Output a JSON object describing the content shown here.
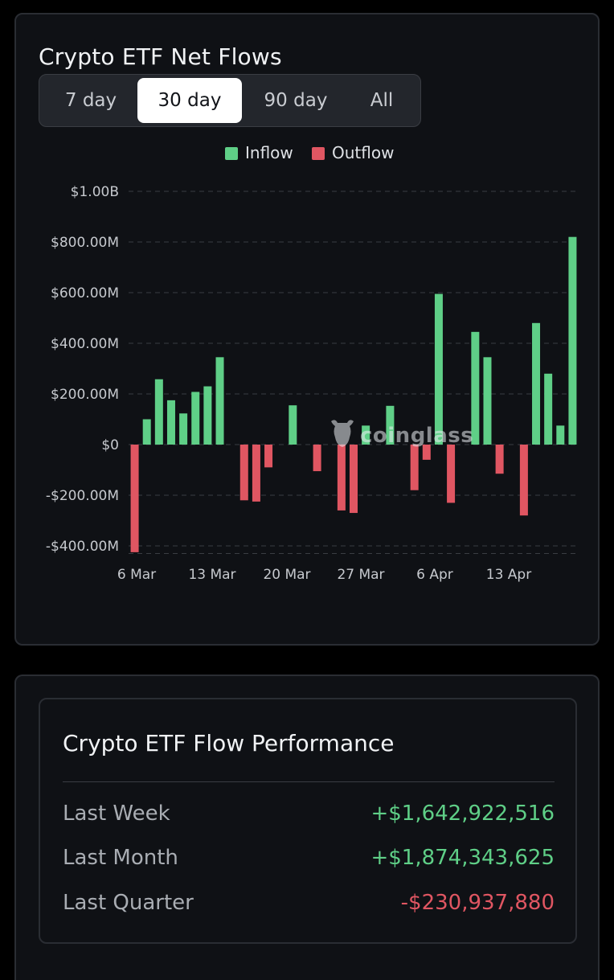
{
  "chart_card": {
    "title": "Crypto ETF Net Flows",
    "tabs": [
      {
        "label": "7 day",
        "active": false
      },
      {
        "label": "30 day",
        "active": true
      },
      {
        "label": "90 day",
        "active": false
      },
      {
        "label": "All",
        "active": false
      }
    ],
    "legend": [
      {
        "label": "Inflow",
        "color": "#5fcf87"
      },
      {
        "label": "Outflow",
        "color": "#e05662"
      }
    ],
    "watermark": "coinglass"
  },
  "chart_data": {
    "type": "bar",
    "yticks": [
      "$1.00B",
      "$800.00M",
      "$600.00M",
      "$400.00M",
      "$200.00M",
      "$0",
      "-$200.00M",
      "-$400.00M"
    ],
    "ytick_values": [
      1000,
      800,
      600,
      400,
      200,
      0,
      -200,
      -400
    ],
    "ylim": [
      -430,
      1000
    ],
    "y_unit": "USD millions",
    "xticks": [
      "6 Mar",
      "13 Mar",
      "20 Mar",
      "27 Mar",
      "6 Apr",
      "13 Apr"
    ],
    "categories": [
      "2025-03-06",
      "2025-03-07",
      "2025-03-08",
      "2025-03-09",
      "2025-03-10",
      "2025-03-11",
      "2025-03-12",
      "2025-03-13",
      "2025-03-14",
      "2025-03-15",
      "2025-03-16",
      "2025-03-17",
      "2025-03-18",
      "2025-03-19",
      "2025-03-20",
      "2025-03-21",
      "2025-03-22",
      "2025-03-23",
      "2025-03-24",
      "2025-03-25",
      "2025-03-26",
      "2025-03-27",
      "2025-03-28",
      "2025-03-29",
      "2025-03-30",
      "2025-03-31",
      "2025-04-01",
      "2025-04-02",
      "2025-04-03",
      "2025-04-04",
      "2025-04-05",
      "2025-04-06",
      "2025-04-07",
      "2025-04-08",
      "2025-04-09",
      "2025-04-10",
      "2025-04-11"
    ],
    "values": [
      -425,
      100,
      258,
      175,
      123,
      208,
      230,
      345,
      0,
      -220,
      -225,
      -90,
      0,
      155,
      0,
      -105,
      0,
      -260,
      -270,
      75,
      0,
      153,
      0,
      -180,
      -60,
      595,
      -230,
      0,
      445,
      345,
      -115,
      0,
      -280,
      480,
      280,
      75,
      820
    ],
    "inflow_color": "#5fcf87",
    "outflow_color": "#e05662",
    "grid": true,
    "legend_position": "top-center"
  },
  "performance": {
    "title": "Crypto ETF Flow Performance",
    "rows": [
      {
        "label": "Last Week",
        "value": "+$1,642,922,516",
        "color": "#5fcf87"
      },
      {
        "label": "Last Month",
        "value": "+$1,874,343,625",
        "color": "#5fcf87"
      },
      {
        "label": "Last Quarter",
        "value": "-$230,937,880",
        "color": "#e05662"
      }
    ]
  }
}
